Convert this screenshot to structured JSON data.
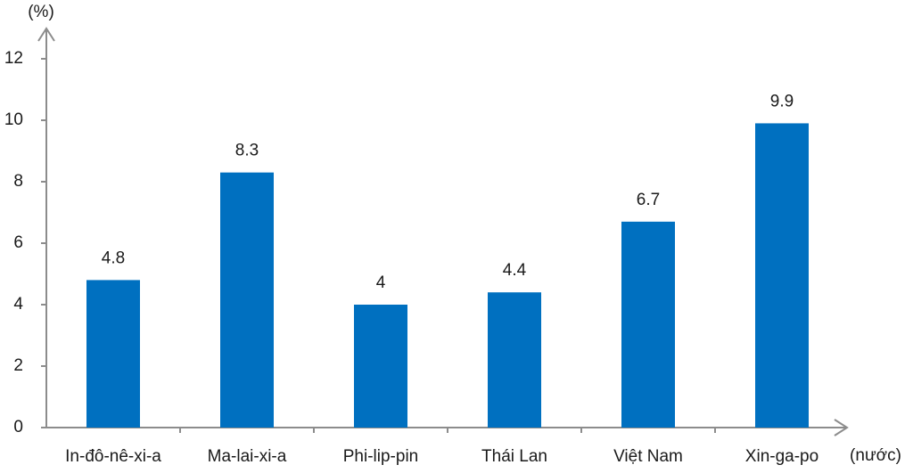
{
  "chart_data": {
    "type": "bar",
    "y_axis_label": "(%)",
    "x_axis_label": "(nước)",
    "categories": [
      "In-đô-nê-xi-a",
      "Ma-lai-xi-a",
      "Phi-lip-pin",
      "Thái Lan",
      "Việt Nam",
      "Xin-ga-po"
    ],
    "values": [
      4.8,
      8.3,
      4,
      4.4,
      6.7,
      9.9
    ],
    "color": "#0070c0",
    "ylim": [
      0,
      13
    ],
    "yticks": [
      0,
      2,
      4,
      6,
      8,
      10,
      12
    ],
    "grid": false
  }
}
